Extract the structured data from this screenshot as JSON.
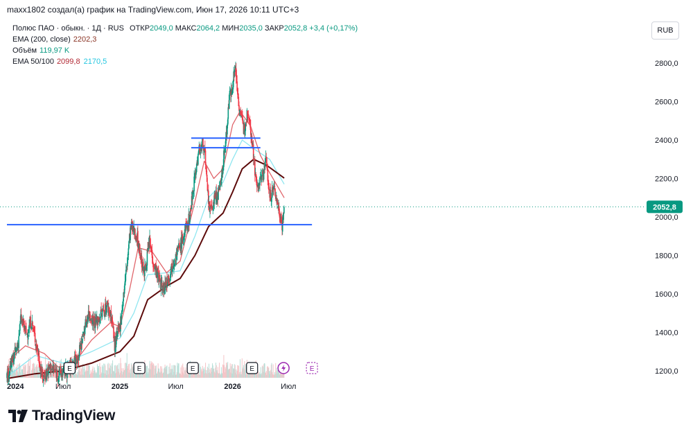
{
  "header": {
    "caption": "maxx1802 создал(а) график на TradingView.com, Июн 17, 2026 10:11 UTC+3"
  },
  "legend": {
    "symbol": "Полюс ПАО · обыкн. · 1Д · RUS",
    "open_label": "ОТКР",
    "open": "2049,0",
    "high_label": "МАКС",
    "high": "2064,2",
    "low_label": "МИН",
    "low": "2035,0",
    "close_label": "ЗАКР",
    "close": "2052,8",
    "change": "+3,4 (+0,17%)",
    "ema200_label": "EMA (200, close)",
    "ema200_value": "2202,3",
    "volume_label": "Объём",
    "volume_value": "119,97 K",
    "ema50_100_label": "EMA 50/100",
    "ema50_value": "2099,8",
    "ema100_value": "2170,5"
  },
  "currency_button": "RUB",
  "brand": "TradingView",
  "colors": {
    "up": "#089981",
    "down": "#f23645",
    "ema50": "#e0656b",
    "ema100": "#8ee6f0",
    "ema200": "#5c0a0a",
    "hline": "#2962ff",
    "price_tag": "#089981"
  },
  "chart_data": {
    "type": "candlestick",
    "symbol": "Полюс ПАО · обыкн.",
    "interval": "1Д",
    "ylim": [
      1160,
      2870
    ],
    "y_ticks": [
      1200,
      1400,
      1600,
      1800,
      2000,
      2200,
      2400,
      2600,
      2800
    ],
    "y_tick_labels": [
      "1200,0",
      "1400,0",
      "1600,0",
      "1800,0",
      "2000,0",
      "2200,0",
      "2400,0",
      "2600,0",
      "2800,0"
    ],
    "x_ticks": [
      "2024-01-01",
      "2024-07-01",
      "2025-01-01",
      "2025-07-01",
      "2026-01-01",
      "2026-07-01"
    ],
    "x_tick_labels": [
      "2024",
      "Июл",
      "2025",
      "Июл",
      "2026",
      "Июл"
    ],
    "last_price": 2052.8,
    "last_price_label": "2052,8",
    "price_path": [
      [
        "2024-01-01",
        1170
      ],
      [
        "2024-02-05",
        1330
      ],
      [
        "2024-02-15",
        1470
      ],
      [
        "2024-03-05",
        1390
      ],
      [
        "2024-03-20",
        1460
      ],
      [
        "2024-04-10",
        1300
      ],
      [
        "2024-04-25",
        1160
      ],
      [
        "2024-05-20",
        1220
      ],
      [
        "2024-06-15",
        1180
      ],
      [
        "2024-07-20",
        1210
      ],
      [
        "2024-08-20",
        1280
      ],
      [
        "2024-09-20",
        1500
      ],
      [
        "2024-10-15",
        1450
      ],
      [
        "2024-11-20",
        1540
      ],
      [
        "2024-12-05",
        1480
      ],
      [
        "2024-12-15",
        1330
      ],
      [
        "2025-01-01",
        1430
      ],
      [
        "2025-01-20",
        1700
      ],
      [
        "2025-02-05",
        1950
      ],
      [
        "2025-02-25",
        1900
      ],
      [
        "2025-03-20",
        1700
      ],
      [
        "2025-04-07",
        1870
      ],
      [
        "2025-04-20",
        1760
      ],
      [
        "2025-05-20",
        1620
      ],
      [
        "2025-06-10",
        1700
      ],
      [
        "2025-06-25",
        1780
      ],
      [
        "2025-07-20",
        1870
      ],
      [
        "2025-08-15",
        2000
      ],
      [
        "2025-08-30",
        2200
      ],
      [
        "2025-09-15",
        2350
      ],
      [
        "2025-10-01",
        2380
      ],
      [
        "2025-10-10",
        2150
      ],
      [
        "2025-10-20",
        2020
      ],
      [
        "2025-11-05",
        2100
      ],
      [
        "2025-11-20",
        2130
      ],
      [
        "2025-12-10",
        2400
      ],
      [
        "2025-12-20",
        2600
      ],
      [
        "2026-01-01",
        2700
      ],
      [
        "2026-01-10",
        2780
      ],
      [
        "2026-01-20",
        2600
      ],
      [
        "2026-02-05",
        2450
      ],
      [
        "2026-02-20",
        2560
      ],
      [
        "2026-03-05",
        2400
      ],
      [
        "2026-03-20",
        2150
      ],
      [
        "2026-04-05",
        2200
      ],
      [
        "2026-04-20",
        2300
      ],
      [
        "2026-05-01",
        2100
      ],
      [
        "2026-05-15",
        2150
      ],
      [
        "2026-05-25",
        2080
      ],
      [
        "2026-06-05",
        2000
      ],
      [
        "2026-06-10",
        1960
      ],
      [
        "2026-06-17",
        2052.8
      ]
    ],
    "ema50_path": [
      [
        "2024-01-10",
        1260
      ],
      [
        "2024-03-01",
        1330
      ],
      [
        "2024-05-01",
        1290
      ],
      [
        "2024-06-15",
        1220
      ],
      [
        "2024-08-01",
        1230
      ],
      [
        "2024-10-01",
        1360
      ],
      [
        "2024-12-01",
        1450
      ],
      [
        "2025-01-01",
        1430
      ],
      [
        "2025-02-01",
        1620
      ],
      [
        "2025-03-01",
        1840
      ],
      [
        "2025-04-15",
        1820
      ],
      [
        "2025-06-01",
        1710
      ],
      [
        "2025-07-15",
        1770
      ],
      [
        "2025-09-01",
        2080
      ],
      [
        "2025-10-01",
        2290
      ],
      [
        "2025-11-01",
        2200
      ],
      [
        "2025-12-01",
        2250
      ],
      [
        "2026-01-01",
        2480
      ],
      [
        "2026-01-25",
        2550
      ],
      [
        "2026-03-01",
        2470
      ],
      [
        "2026-04-01",
        2320
      ],
      [
        "2026-05-01",
        2230
      ],
      [
        "2026-06-17",
        2099.8
      ]
    ],
    "ema100_path": [
      [
        "2024-01-10",
        1180
      ],
      [
        "2024-04-01",
        1280
      ],
      [
        "2024-07-01",
        1240
      ],
      [
        "2024-10-01",
        1300
      ],
      [
        "2025-01-01",
        1370
      ],
      [
        "2025-02-15",
        1500
      ],
      [
        "2025-04-01",
        1700
      ],
      [
        "2025-06-01",
        1710
      ],
      [
        "2025-07-15",
        1720
      ],
      [
        "2025-09-01",
        1900
      ],
      [
        "2025-10-15",
        2100
      ],
      [
        "2025-12-01",
        2180
      ],
      [
        "2026-01-01",
        2300
      ],
      [
        "2026-02-01",
        2400
      ],
      [
        "2026-03-15",
        2350
      ],
      [
        "2026-05-01",
        2300
      ],
      [
        "2026-06-17",
        2170.5
      ]
    ],
    "ema200_path": [
      [
        "2024-01-01",
        1160
      ],
      [
        "2024-04-01",
        1185
      ],
      [
        "2024-07-01",
        1200
      ],
      [
        "2024-10-01",
        1240
      ],
      [
        "2025-01-01",
        1300
      ],
      [
        "2025-02-15",
        1380
      ],
      [
        "2025-04-01",
        1570
      ],
      [
        "2025-06-01",
        1640
      ],
      [
        "2025-07-15",
        1680
      ],
      [
        "2025-09-01",
        1800
      ],
      [
        "2025-10-15",
        1950
      ],
      [
        "2025-12-01",
        2020
      ],
      [
        "2026-01-01",
        2130
      ],
      [
        "2026-02-01",
        2250
      ],
      [
        "2026-03-10",
        2300
      ],
      [
        "2026-04-20",
        2270
      ],
      [
        "2026-06-17",
        2202.3
      ]
    ],
    "horizontal_lines": [
      {
        "price": 1960,
        "from": "2024-01-01",
        "to": "2026-09-15"
      },
      {
        "price": 2410,
        "from": "2025-08-20",
        "to": "2026-04-01"
      },
      {
        "price": 2360,
        "from": "2025-08-20",
        "to": "2026-04-01"
      }
    ],
    "event_markers": [
      {
        "date": "2024-07-22",
        "type": "earnings"
      },
      {
        "date": "2025-03-05",
        "type": "earnings"
      },
      {
        "date": "2025-08-25",
        "type": "earnings"
      },
      {
        "date": "2026-03-05",
        "type": "earnings"
      },
      {
        "date": "2026-06-15",
        "type": "dividend"
      },
      {
        "date": "2026-09-15",
        "type": "earnings-upcoming"
      }
    ]
  }
}
